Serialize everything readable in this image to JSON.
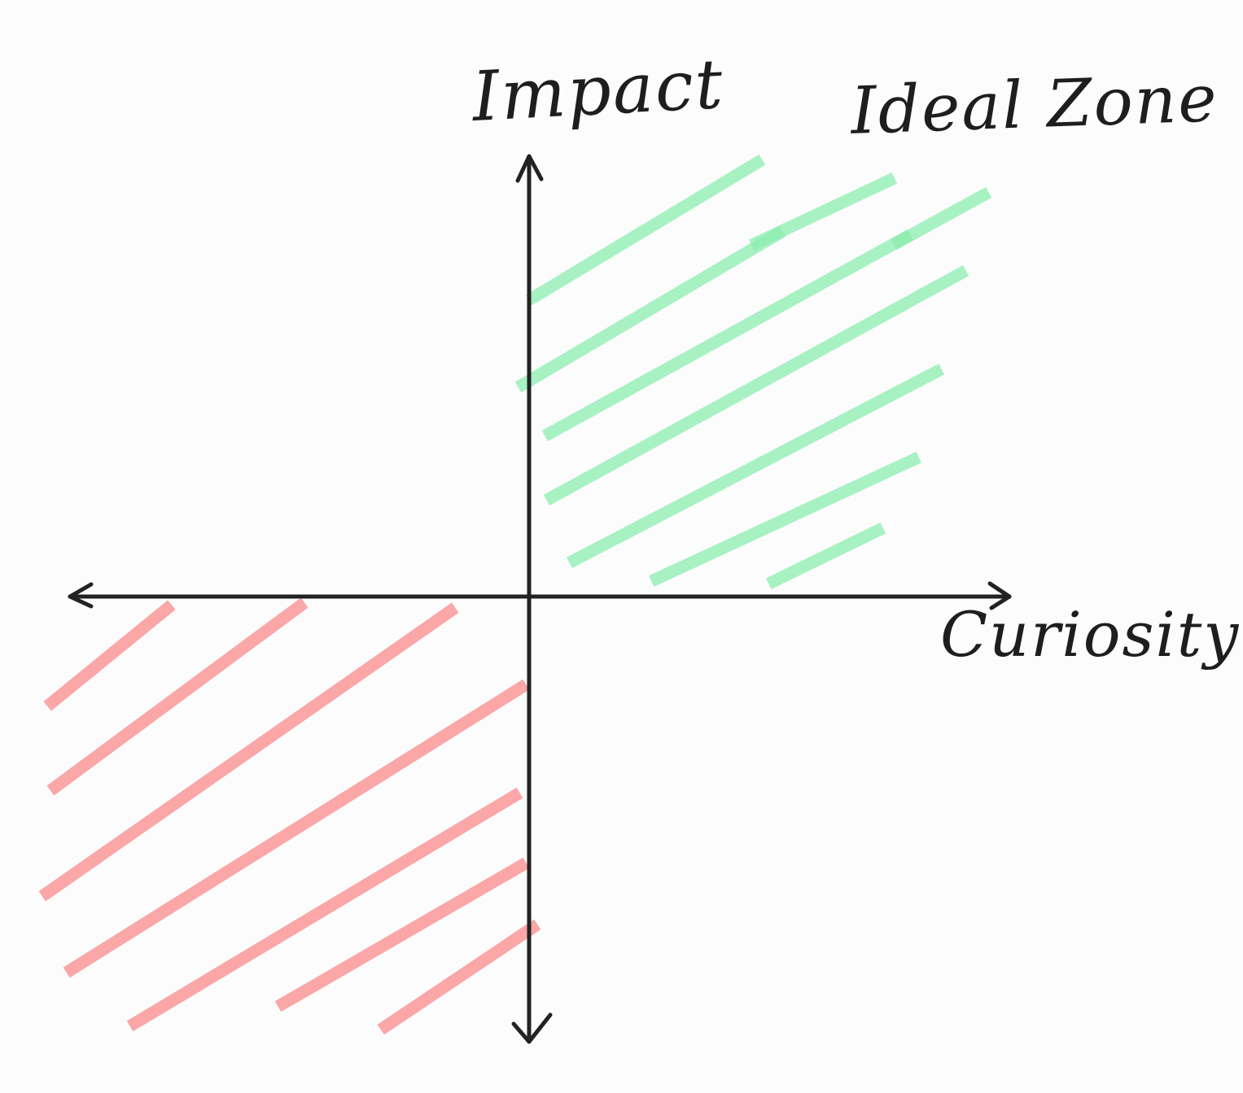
{
  "axes": {
    "y_label": "Impact",
    "x_label": "Curiosity"
  },
  "zones": {
    "ideal": {
      "label": "Ideal Zone",
      "color": "#8ceeb0"
    },
    "low": {
      "color": "#fb9d9e"
    }
  },
  "colors": {
    "axis": "#222222",
    "background": "#fcfcfc"
  }
}
